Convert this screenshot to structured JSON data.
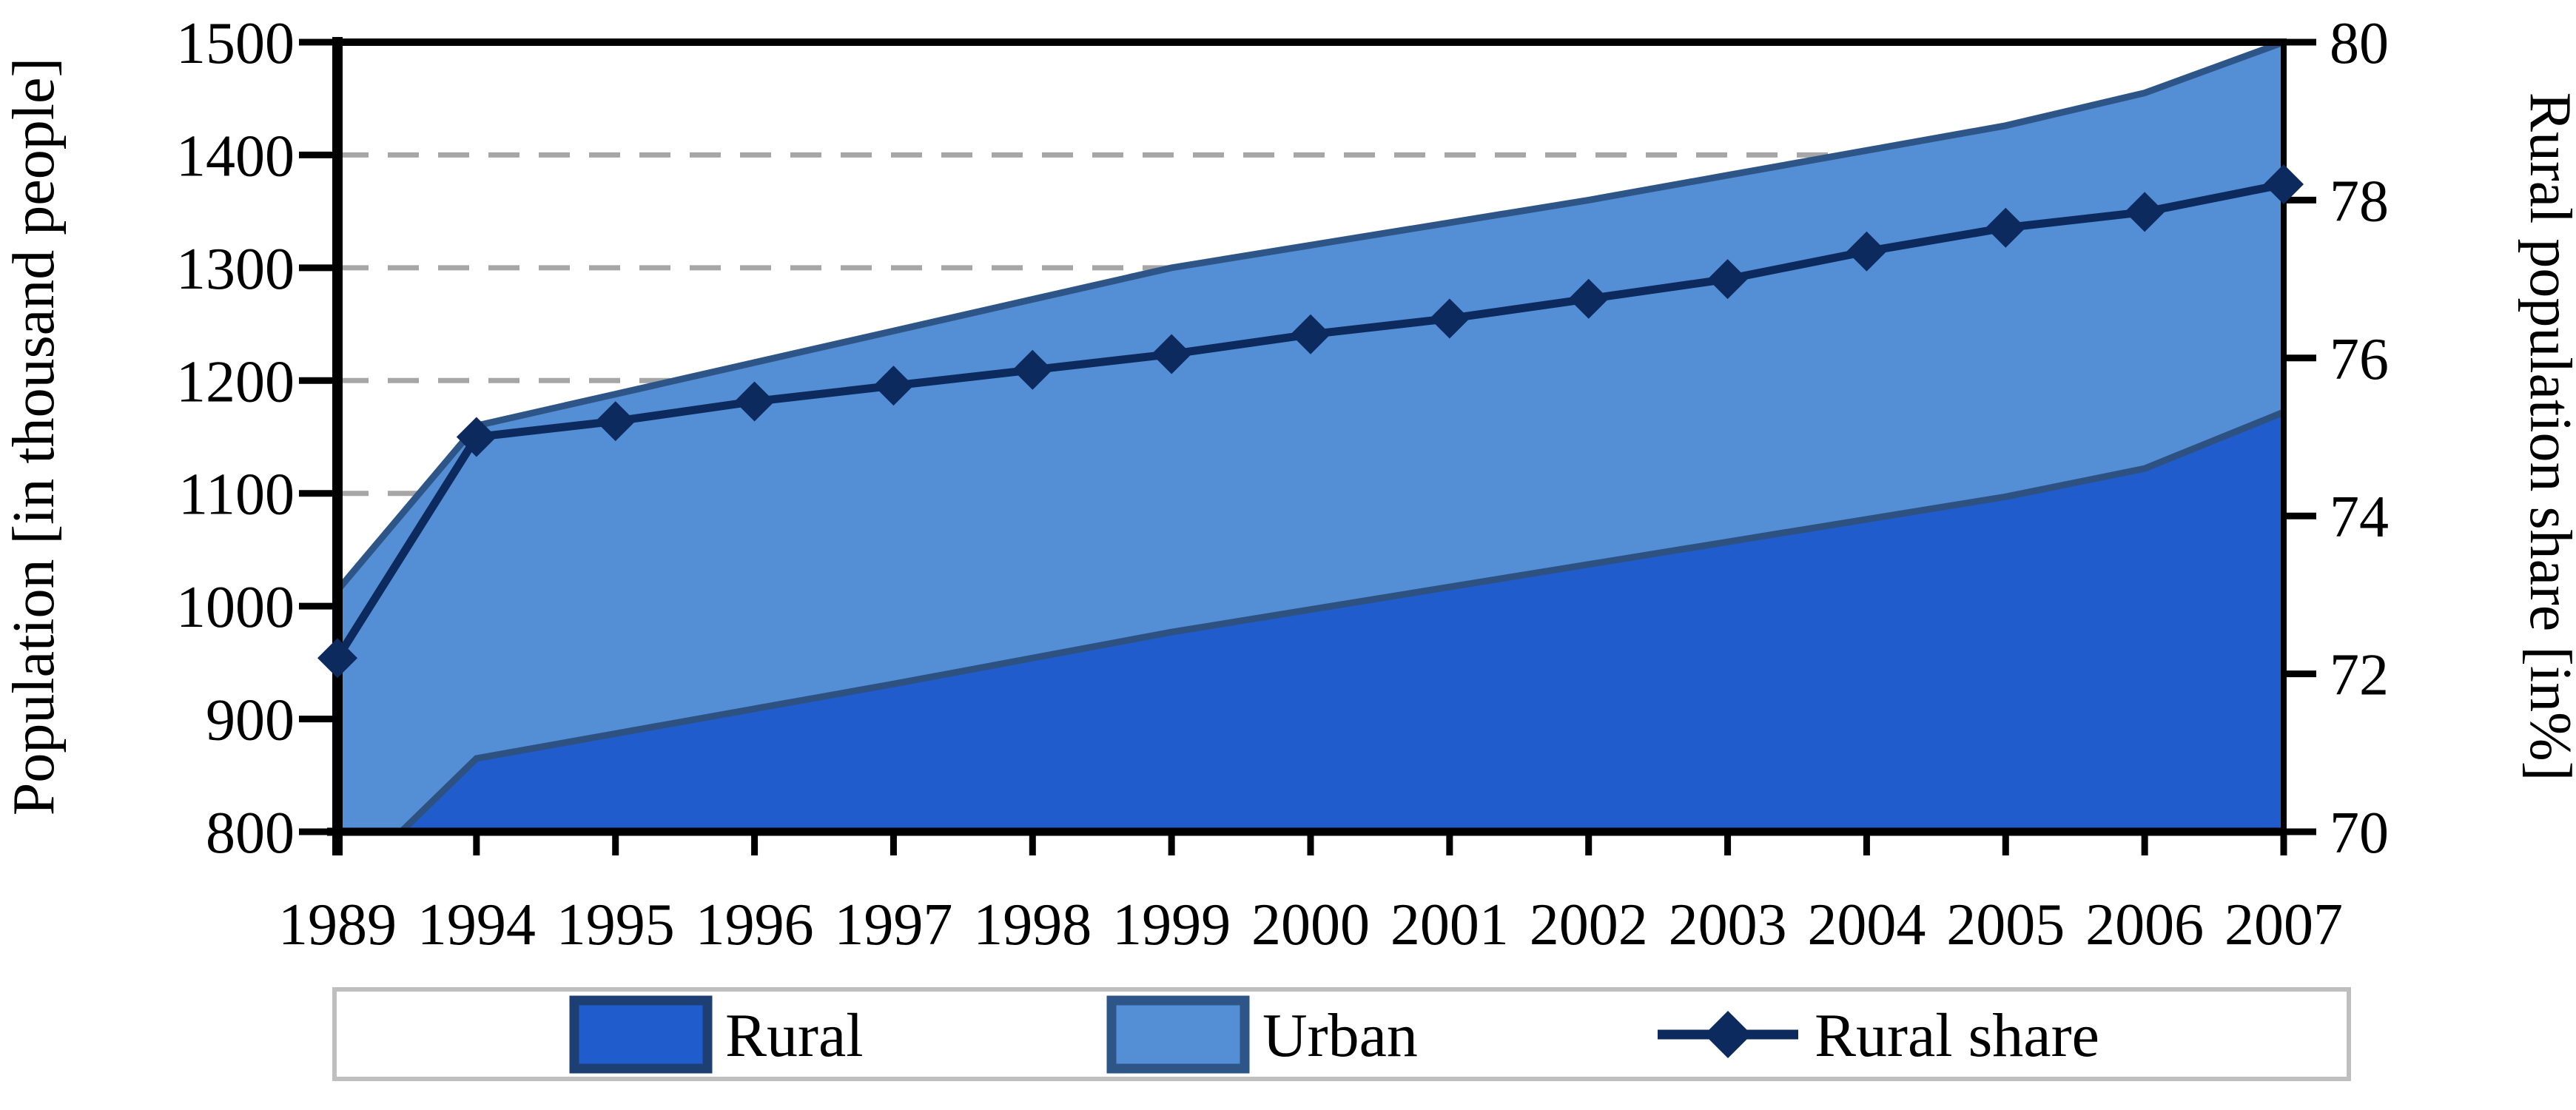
{
  "figure": {
    "left_axis": {
      "title": "Population [in thousand people]",
      "min": 800,
      "max": 1500,
      "tick_step": 100,
      "ticks": [
        1500,
        1400,
        1300,
        1200,
        1100,
        1000,
        900,
        800
      ],
      "gridlines": [
        1400,
        1300,
        1200,
        1100
      ]
    },
    "right_axis": {
      "title": "Rural population share [in%]",
      "min": 70,
      "max": 80,
      "ticks": [
        80,
        78,
        76,
        74,
        72,
        70
      ]
    },
    "x_axis": {
      "categories": [
        "1989",
        "1994",
        "1995",
        "1996",
        "1997",
        "1998",
        "1999",
        "2000",
        "2001",
        "2002",
        "2003",
        "2004",
        "2005",
        "2006",
        "2007"
      ]
    },
    "colors": {
      "rural_fill": "#215ccd",
      "rural_edge": "#2d5282",
      "urban_fill": "#548ed5",
      "urban_edge": "#2e5587",
      "share_line": "#0d2a5e",
      "gridline": "#a6a6a6",
      "axis": "#000000",
      "legend_border": "#bfbfbf",
      "background": "#ffffff"
    }
  },
  "chart_data": {
    "type": "area",
    "stacked": true,
    "x": [
      "1989",
      "1994",
      "1995",
      "1996",
      "1997",
      "1998",
      "1999",
      "2000",
      "2001",
      "2002",
      "2003",
      "2004",
      "2005",
      "2006",
      "2007"
    ],
    "series": [
      {
        "name": "Rural",
        "axis": "left",
        "values": [
          745,
          865,
          887,
          909,
          931,
          954,
          977,
          997,
          1017,
          1037,
          1057,
          1077,
          1097,
          1122,
          1172
        ]
      },
      {
        "name": "Urban",
        "axis": "left",
        "values": [
          269,
          295,
          301,
          307,
          313,
          318,
          323,
          323,
          323,
          323,
          325,
          327,
          329,
          333,
          328
        ]
      }
    ],
    "line_series": {
      "name": "Rural share",
      "axis": "right",
      "marker": "diamond",
      "values": [
        72.2,
        75.0,
        75.2,
        75.45,
        75.65,
        75.85,
        76.05,
        76.3,
        76.5,
        76.75,
        77.0,
        77.35,
        77.65,
        77.85,
        78.2
      ]
    },
    "title": "",
    "xlabel": "",
    "ylabel_left": "Population [in thousand people]",
    "ylabel_right": "Rural population share [in%]",
    "ylim_left": [
      800,
      1500
    ],
    "ylim_right": [
      70,
      80
    ],
    "grid": "dashed horizontal at 1100-1400",
    "legend_position": "bottom"
  }
}
